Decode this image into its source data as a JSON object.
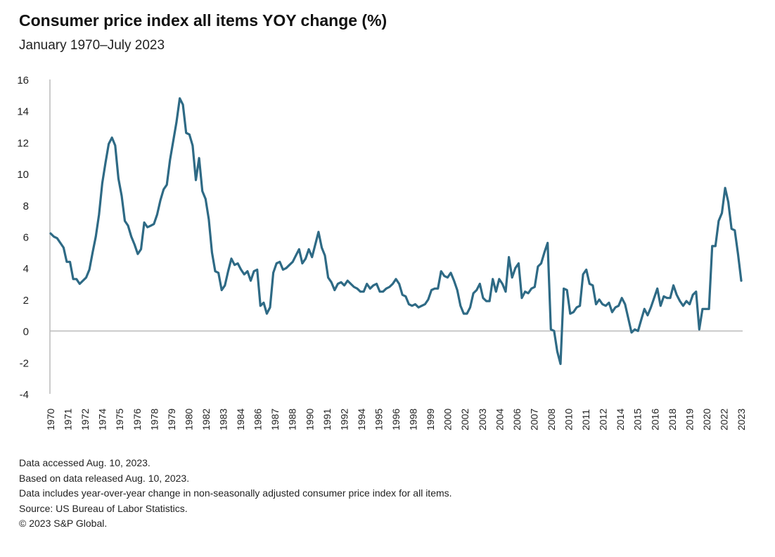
{
  "chart_data": {
    "type": "line",
    "title": "Consumer price index all items YOY change (%)",
    "subtitle": "January 1970–July 2023",
    "xlabel": "",
    "ylabel": "",
    "ylim": [
      -4,
      16
    ],
    "yticks": [
      -4,
      -2,
      0,
      2,
      4,
      6,
      8,
      10,
      12,
      14,
      16
    ],
    "xrange": [
      "1970-01",
      "2023-07"
    ],
    "xtick_labels": [
      "1970",
      "1971",
      "1972",
      "1974",
      "1975",
      "1976",
      "1978",
      "1979",
      "1980",
      "1982",
      "1983",
      "1984",
      "1986",
      "1987",
      "1988",
      "1990",
      "1991",
      "1992",
      "1994",
      "1995",
      "1996",
      "1998",
      "1999",
      "2000",
      "2002",
      "2003",
      "2004",
      "2006",
      "2007",
      "2008",
      "2010",
      "2011",
      "2012",
      "2014",
      "2015",
      "2016",
      "2018",
      "2019",
      "2020",
      "2022",
      "2023"
    ],
    "grid": false,
    "zero_line": true,
    "line_color": "#2e6a85",
    "series_quarterly_months": [
      "Jan",
      "Apr",
      "Jul",
      "Oct"
    ],
    "series_quarterly": {
      "1970": [
        6.2,
        6.0,
        5.9,
        5.6
      ],
      "1971": [
        5.3,
        4.4,
        4.4,
        3.3
      ],
      "1972": [
        3.3,
        3.0,
        3.2,
        3.4
      ],
      "1973": [
        3.9,
        5.0,
        6.0,
        7.4
      ],
      "1974": [
        9.4,
        10.7,
        11.9,
        12.3
      ],
      "1975": [
        11.8,
        9.7,
        8.6,
        7.0
      ],
      "1976": [
        6.7,
        6.0,
        5.5,
        4.9
      ],
      "1977": [
        5.2,
        6.9,
        6.6,
        6.7
      ],
      "1978": [
        6.8,
        7.4,
        8.3,
        9.0
      ],
      "1979": [
        9.3,
        10.9,
        12.1,
        13.3
      ],
      "1980": [
        14.8,
        14.4,
        12.6,
        12.5
      ],
      "1981": [
        11.8,
        9.6,
        11.0,
        8.9
      ],
      "1982": [
        8.4,
        7.1,
        5.0,
        3.8
      ],
      "1983": [
        3.7,
        2.6,
        2.9,
        3.8
      ],
      "1984": [
        4.6,
        4.2,
        4.3,
        3.9
      ],
      "1985": [
        3.6,
        3.8,
        3.2,
        3.8
      ],
      "1986": [
        3.9,
        1.6,
        1.8,
        1.1
      ],
      "1987": [
        1.5,
        3.7,
        4.3,
        4.4
      ],
      "1988": [
        3.9,
        4.0,
        4.2,
        4.4
      ],
      "1989": [
        4.8,
        5.2,
        4.3,
        4.6
      ],
      "1990": [
        5.2,
        4.7,
        5.5,
        6.3
      ],
      "1991": [
        5.3,
        4.8,
        3.4,
        3.1
      ],
      "1992": [
        2.6,
        3.0,
        3.1,
        2.9
      ],
      "1993": [
        3.2,
        3.0,
        2.8,
        2.7
      ],
      "1994": [
        2.5,
        2.5,
        3.0,
        2.7
      ],
      "1995": [
        2.9,
        3.0,
        2.5,
        2.5
      ],
      "1996": [
        2.7,
        2.8,
        3.0,
        3.3
      ],
      "1997": [
        3.0,
        2.3,
        2.2,
        1.7
      ],
      "1998": [
        1.6,
        1.7,
        1.5,
        1.6
      ],
      "1999": [
        1.7,
        2.0,
        2.6,
        2.7
      ],
      "2000": [
        2.7,
        3.8,
        3.5,
        3.4
      ],
      "2001": [
        3.7,
        3.2,
        2.6,
        1.6
      ],
      "2002": [
        1.1,
        1.1,
        1.5,
        2.4
      ],
      "2003": [
        2.6,
        3.0,
        2.1,
        1.9
      ],
      "2004": [
        1.9,
        3.3,
        2.5,
        3.3
      ],
      "2005": [
        3.0,
        2.5,
        4.7,
        3.4
      ],
      "2006": [
        4.0,
        4.3,
        2.1,
        2.5
      ],
      "2007": [
        2.4,
        2.7,
        2.8,
        4.1
      ],
      "2008": [
        4.3,
        5.0,
        5.6,
        0.1
      ],
      "2009": [
        0.0,
        -1.3,
        -2.1,
        2.7
      ],
      "2010": [
        2.6,
        1.1,
        1.2,
        1.5
      ],
      "2011": [
        1.6,
        3.6,
        3.9,
        3.0
      ],
      "2012": [
        2.9,
        1.7,
        2.0,
        1.7
      ],
      "2013": [
        1.6,
        1.8,
        1.2,
        1.5
      ],
      "2014": [
        1.6,
        2.1,
        1.7,
        0.8
      ],
      "2015": [
        -0.1,
        0.1,
        0.0,
        0.7
      ],
      "2016": [
        1.4,
        1.0,
        1.5,
        2.1
      ],
      "2017": [
        2.7,
        1.6,
        2.2,
        2.1
      ],
      "2018": [
        2.1,
        2.9,
        2.3,
        1.9
      ],
      "2019": [
        1.6,
        1.9,
        1.7,
        2.3
      ],
      "2020": [
        2.5,
        0.1,
        1.4,
        1.4
      ],
      "2021": [
        1.4,
        5.4,
        5.4,
        7.0
      ],
      "2022": [
        7.5,
        9.1,
        8.2,
        6.5
      ],
      "2023": [
        6.4,
        4.9,
        3.2
      ]
    }
  },
  "notes": [
    "Data accessed Aug. 10, 2023.",
    "Based on data released Aug. 10, 2023.",
    "Data includes year-over-year change in non-seasonally adjusted consumer price index for all items.",
    "Source: US Bureau of Labor Statistics.",
    "© 2023 S&P Global."
  ]
}
